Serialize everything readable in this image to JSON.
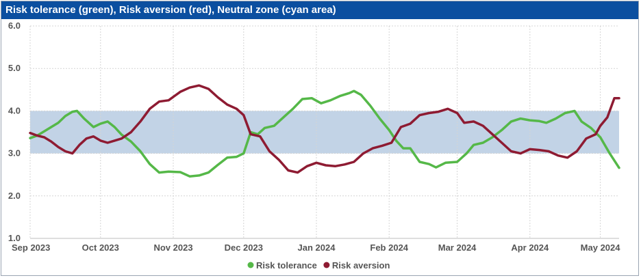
{
  "chart_data": {
    "type": "line",
    "title": "Risk tolerance (green), Risk aversion (red), Neutral zone (cyan area)",
    "ylim": [
      1.0,
      6.0
    ],
    "yticks": [
      "1.0",
      "2.0",
      "3.0",
      "4.0",
      "5.0",
      "6.0"
    ],
    "xlim": [
      "2023-09-01",
      "2024-05-09"
    ],
    "xticks": [
      {
        "date": "2023-09-01",
        "label": "Sep 2023"
      },
      {
        "date": "2023-10-01",
        "label": "Oct 2023"
      },
      {
        "date": "2023-11-01",
        "label": "Nov 2023"
      },
      {
        "date": "2023-12-01",
        "label": "Dec 2023"
      },
      {
        "date": "2024-01-01",
        "label": "Jan 2024"
      },
      {
        "date": "2024-02-01",
        "label": "Feb 2024"
      },
      {
        "date": "2024-03-01",
        "label": "Mar 2024"
      },
      {
        "date": "2024-04-01",
        "label": "Apr 2024"
      },
      {
        "date": "2024-05-01",
        "label": "May 2024"
      }
    ],
    "neutral_zone": {
      "low": 3.0,
      "high": 4.0,
      "color": "#c2d3e6"
    },
    "grid": true,
    "legend_position": "bottom",
    "series": [
      {
        "name": "Risk tolerance",
        "color": "#55b848",
        "points": [
          [
            "2023-09-01",
            3.36
          ],
          [
            "2023-09-04",
            3.42
          ],
          [
            "2023-09-07",
            3.52
          ],
          [
            "2023-09-10",
            3.62
          ],
          [
            "2023-09-13",
            3.72
          ],
          [
            "2023-09-16",
            3.88
          ],
          [
            "2023-09-19",
            3.98
          ],
          [
            "2023-09-21",
            4.0
          ],
          [
            "2023-09-24",
            3.82
          ],
          [
            "2023-09-28",
            3.62
          ],
          [
            "2023-10-01",
            3.7
          ],
          [
            "2023-10-04",
            3.75
          ],
          [
            "2023-10-07",
            3.62
          ],
          [
            "2023-10-10",
            3.44
          ],
          [
            "2023-10-14",
            3.28
          ],
          [
            "2023-10-18",
            3.05
          ],
          [
            "2023-10-22",
            2.75
          ],
          [
            "2023-10-26",
            2.55
          ],
          [
            "2023-10-30",
            2.57
          ],
          [
            "2023-11-04",
            2.56
          ],
          [
            "2023-11-08",
            2.46
          ],
          [
            "2023-11-12",
            2.48
          ],
          [
            "2023-11-16",
            2.55
          ],
          [
            "2023-11-20",
            2.73
          ],
          [
            "2023-11-24",
            2.9
          ],
          [
            "2023-11-28",
            2.92
          ],
          [
            "2023-12-01",
            3.0
          ],
          [
            "2023-12-04",
            3.5
          ],
          [
            "2023-12-07",
            3.45
          ],
          [
            "2023-12-10",
            3.6
          ],
          [
            "2023-12-14",
            3.65
          ],
          [
            "2023-12-18",
            3.85
          ],
          [
            "2023-12-22",
            4.05
          ],
          [
            "2023-12-26",
            4.28
          ],
          [
            "2023-12-30",
            4.3
          ],
          [
            "2024-01-03",
            4.18
          ],
          [
            "2024-01-07",
            4.25
          ],
          [
            "2024-01-11",
            4.35
          ],
          [
            "2024-01-15",
            4.42
          ],
          [
            "2024-01-17",
            4.47
          ],
          [
            "2024-01-20",
            4.38
          ],
          [
            "2024-01-24",
            4.12
          ],
          [
            "2024-01-28",
            3.82
          ],
          [
            "2024-02-01",
            3.55
          ],
          [
            "2024-02-04",
            3.3
          ],
          [
            "2024-02-07",
            3.12
          ],
          [
            "2024-02-10",
            3.12
          ],
          [
            "2024-02-14",
            2.8
          ],
          [
            "2024-02-18",
            2.75
          ],
          [
            "2024-02-21",
            2.67
          ],
          [
            "2024-02-25",
            2.78
          ],
          [
            "2024-03-01",
            2.8
          ],
          [
            "2024-03-05",
            3.0
          ],
          [
            "2024-03-08",
            3.2
          ],
          [
            "2024-03-12",
            3.25
          ],
          [
            "2024-03-16",
            3.38
          ],
          [
            "2024-03-20",
            3.55
          ],
          [
            "2024-03-24",
            3.75
          ],
          [
            "2024-03-28",
            3.82
          ],
          [
            "2024-04-01",
            3.78
          ],
          [
            "2024-04-05",
            3.76
          ],
          [
            "2024-04-08",
            3.72
          ],
          [
            "2024-04-12",
            3.82
          ],
          [
            "2024-04-16",
            3.95
          ],
          [
            "2024-04-20",
            4.0
          ],
          [
            "2024-04-23",
            3.75
          ],
          [
            "2024-04-27",
            3.6
          ],
          [
            "2024-05-01",
            3.38
          ],
          [
            "2024-05-05",
            3.0
          ],
          [
            "2024-05-09",
            2.66
          ]
        ]
      },
      {
        "name": "Risk aversion",
        "color": "#8e1b32",
        "points": [
          [
            "2023-09-01",
            3.48
          ],
          [
            "2023-09-04",
            3.42
          ],
          [
            "2023-09-07",
            3.38
          ],
          [
            "2023-09-10",
            3.28
          ],
          [
            "2023-09-13",
            3.15
          ],
          [
            "2023-09-16",
            3.05
          ],
          [
            "2023-09-19",
            3.0
          ],
          [
            "2023-09-22",
            3.2
          ],
          [
            "2023-09-25",
            3.35
          ],
          [
            "2023-09-28",
            3.4
          ],
          [
            "2023-10-01",
            3.3
          ],
          [
            "2023-10-04",
            3.25
          ],
          [
            "2023-10-07",
            3.3
          ],
          [
            "2023-10-10",
            3.35
          ],
          [
            "2023-10-14",
            3.5
          ],
          [
            "2023-10-18",
            3.75
          ],
          [
            "2023-10-22",
            4.05
          ],
          [
            "2023-10-26",
            4.22
          ],
          [
            "2023-10-30",
            4.25
          ],
          [
            "2023-11-04",
            4.45
          ],
          [
            "2023-11-08",
            4.55
          ],
          [
            "2023-11-12",
            4.6
          ],
          [
            "2023-11-16",
            4.52
          ],
          [
            "2023-11-20",
            4.32
          ],
          [
            "2023-11-24",
            4.15
          ],
          [
            "2023-11-28",
            4.05
          ],
          [
            "2023-12-01",
            3.9
          ],
          [
            "2023-12-04",
            3.45
          ],
          [
            "2023-12-08",
            3.4
          ],
          [
            "2023-12-12",
            3.05
          ],
          [
            "2023-12-16",
            2.85
          ],
          [
            "2023-12-20",
            2.6
          ],
          [
            "2023-12-24",
            2.55
          ],
          [
            "2023-12-28",
            2.7
          ],
          [
            "2024-01-01",
            2.78
          ],
          [
            "2024-01-05",
            2.72
          ],
          [
            "2024-01-09",
            2.7
          ],
          [
            "2024-01-13",
            2.74
          ],
          [
            "2024-01-17",
            2.8
          ],
          [
            "2024-01-21",
            3.0
          ],
          [
            "2024-01-25",
            3.12
          ],
          [
            "2024-01-29",
            3.18
          ],
          [
            "2024-02-02",
            3.25
          ],
          [
            "2024-02-06",
            3.62
          ],
          [
            "2024-02-10",
            3.7
          ],
          [
            "2024-02-14",
            3.9
          ],
          [
            "2024-02-18",
            3.95
          ],
          [
            "2024-02-22",
            3.98
          ],
          [
            "2024-02-26",
            4.05
          ],
          [
            "2024-03-01",
            3.95
          ],
          [
            "2024-03-04",
            3.72
          ],
          [
            "2024-03-08",
            3.75
          ],
          [
            "2024-03-12",
            3.65
          ],
          [
            "2024-03-16",
            3.45
          ],
          [
            "2024-03-20",
            3.25
          ],
          [
            "2024-03-24",
            3.05
          ],
          [
            "2024-03-28",
            3.0
          ],
          [
            "2024-04-01",
            3.1
          ],
          [
            "2024-04-05",
            3.08
          ],
          [
            "2024-04-09",
            3.05
          ],
          [
            "2024-04-13",
            2.95
          ],
          [
            "2024-04-17",
            2.9
          ],
          [
            "2024-04-21",
            3.05
          ],
          [
            "2024-04-25",
            3.35
          ],
          [
            "2024-04-29",
            3.45
          ],
          [
            "2024-05-01",
            3.65
          ],
          [
            "2024-05-04",
            3.85
          ],
          [
            "2024-05-07",
            4.3
          ],
          [
            "2024-05-09",
            4.3
          ]
        ]
      }
    ]
  }
}
